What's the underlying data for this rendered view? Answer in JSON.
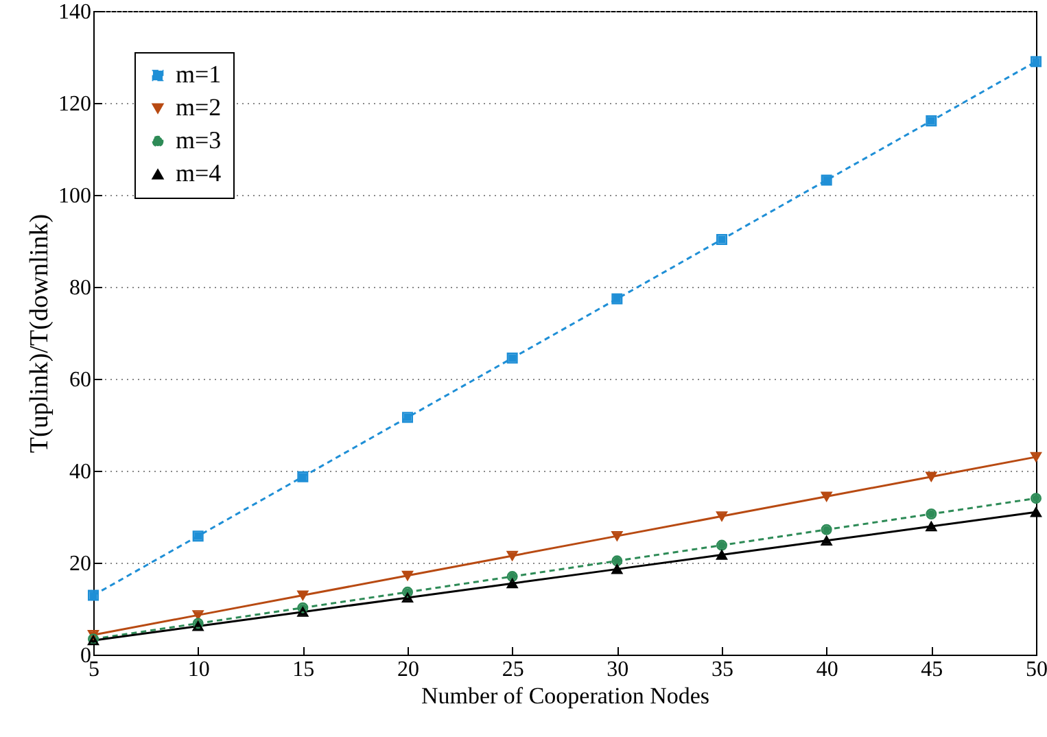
{
  "chart_data": {
    "type": "line",
    "xlabel": "Number of Cooperation Nodes",
    "ylabel": "T(uplink)/T(downlink)",
    "x": [
      5,
      10,
      15,
      20,
      25,
      30,
      35,
      40,
      45,
      50
    ],
    "series": [
      {
        "name": "m=1",
        "color": "#1f8fd6",
        "marker": "square",
        "line_style": "dashed",
        "values": [
          12.9,
          25.8,
          38.7,
          51.6,
          64.5,
          77.4,
          90.3,
          103.2,
          116.1,
          129
        ]
      },
      {
        "name": "m=2",
        "color": "#b84a12",
        "marker": "triangle-down",
        "line_style": "solid",
        "values": [
          4.3,
          8.6,
          12.9,
          17.2,
          21.5,
          25.8,
          30.1,
          34.4,
          38.7,
          43
        ]
      },
      {
        "name": "m=3",
        "color": "#2e8b57",
        "marker": "circle",
        "line_style": "dashed",
        "values": [
          3.4,
          6.8,
          10.2,
          13.6,
          17,
          20.4,
          23.8,
          27.2,
          30.6,
          34
        ]
      },
      {
        "name": "m=4",
        "color": "#000000",
        "marker": "triangle",
        "line_style": "solid",
        "values": [
          3.1,
          6.2,
          9.3,
          12.4,
          15.5,
          18.6,
          21.7,
          24.8,
          27.9,
          31
        ]
      }
    ],
    "xlim": [
      5,
      50
    ],
    "xticks": [
      5,
      10,
      15,
      20,
      25,
      30,
      35,
      40,
      45,
      50
    ],
    "ylim": [
      0,
      140
    ],
    "yticks": [
      0,
      20,
      40,
      60,
      80,
      100,
      120,
      140
    ],
    "grid": "y",
    "legend": "top left"
  }
}
